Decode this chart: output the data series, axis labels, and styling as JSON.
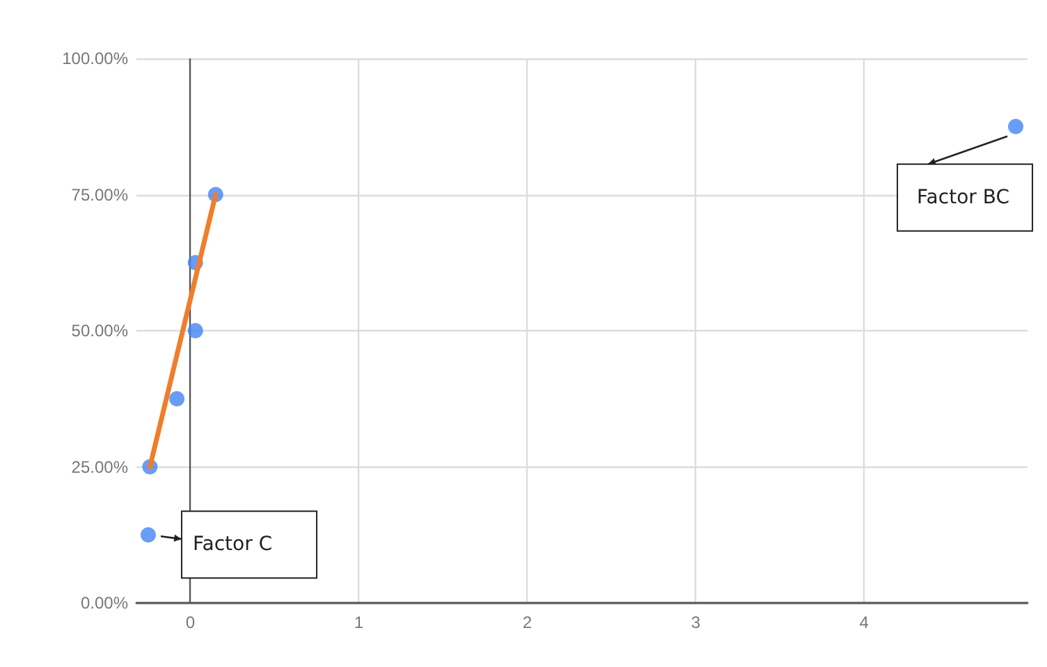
{
  "chart_data": {
    "type": "scatter",
    "x": [
      -0.25,
      -0.24,
      -0.08,
      0.03,
      0.03,
      0.15,
      4.9
    ],
    "values": [
      12.5,
      25,
      37.5,
      50,
      62.5,
      75,
      87.5
    ],
    "color": "#4285f4",
    "marker": "circle",
    "series": [
      {
        "type": "line",
        "color": "#f07d2a",
        "x": [
          -0.24,
          0.15
        ],
        "values": [
          25,
          75
        ],
        "marker": "none",
        "line_style": "solid"
      }
    ],
    "xlim": [
      -0.32,
      4.97
    ],
    "xticks": [
      0,
      1,
      2,
      3,
      4
    ],
    "ylim": [
      0,
      100
    ],
    "yticks": [
      {
        "value": 0,
        "label": "0.00%"
      },
      {
        "value": 25,
        "label": "25.00%"
      },
      {
        "value": 50,
        "label": "50.00%"
      },
      {
        "value": 75,
        "label": "75.00%"
      },
      {
        "value": 100,
        "label": "100.00%"
      }
    ],
    "grid": true,
    "annotations": [
      {
        "text": "Factor C",
        "x": -0.25,
        "y": 12.5
      },
      {
        "text": "Factor BC",
        "x": 4.9,
        "y": 87.5
      }
    ]
  }
}
